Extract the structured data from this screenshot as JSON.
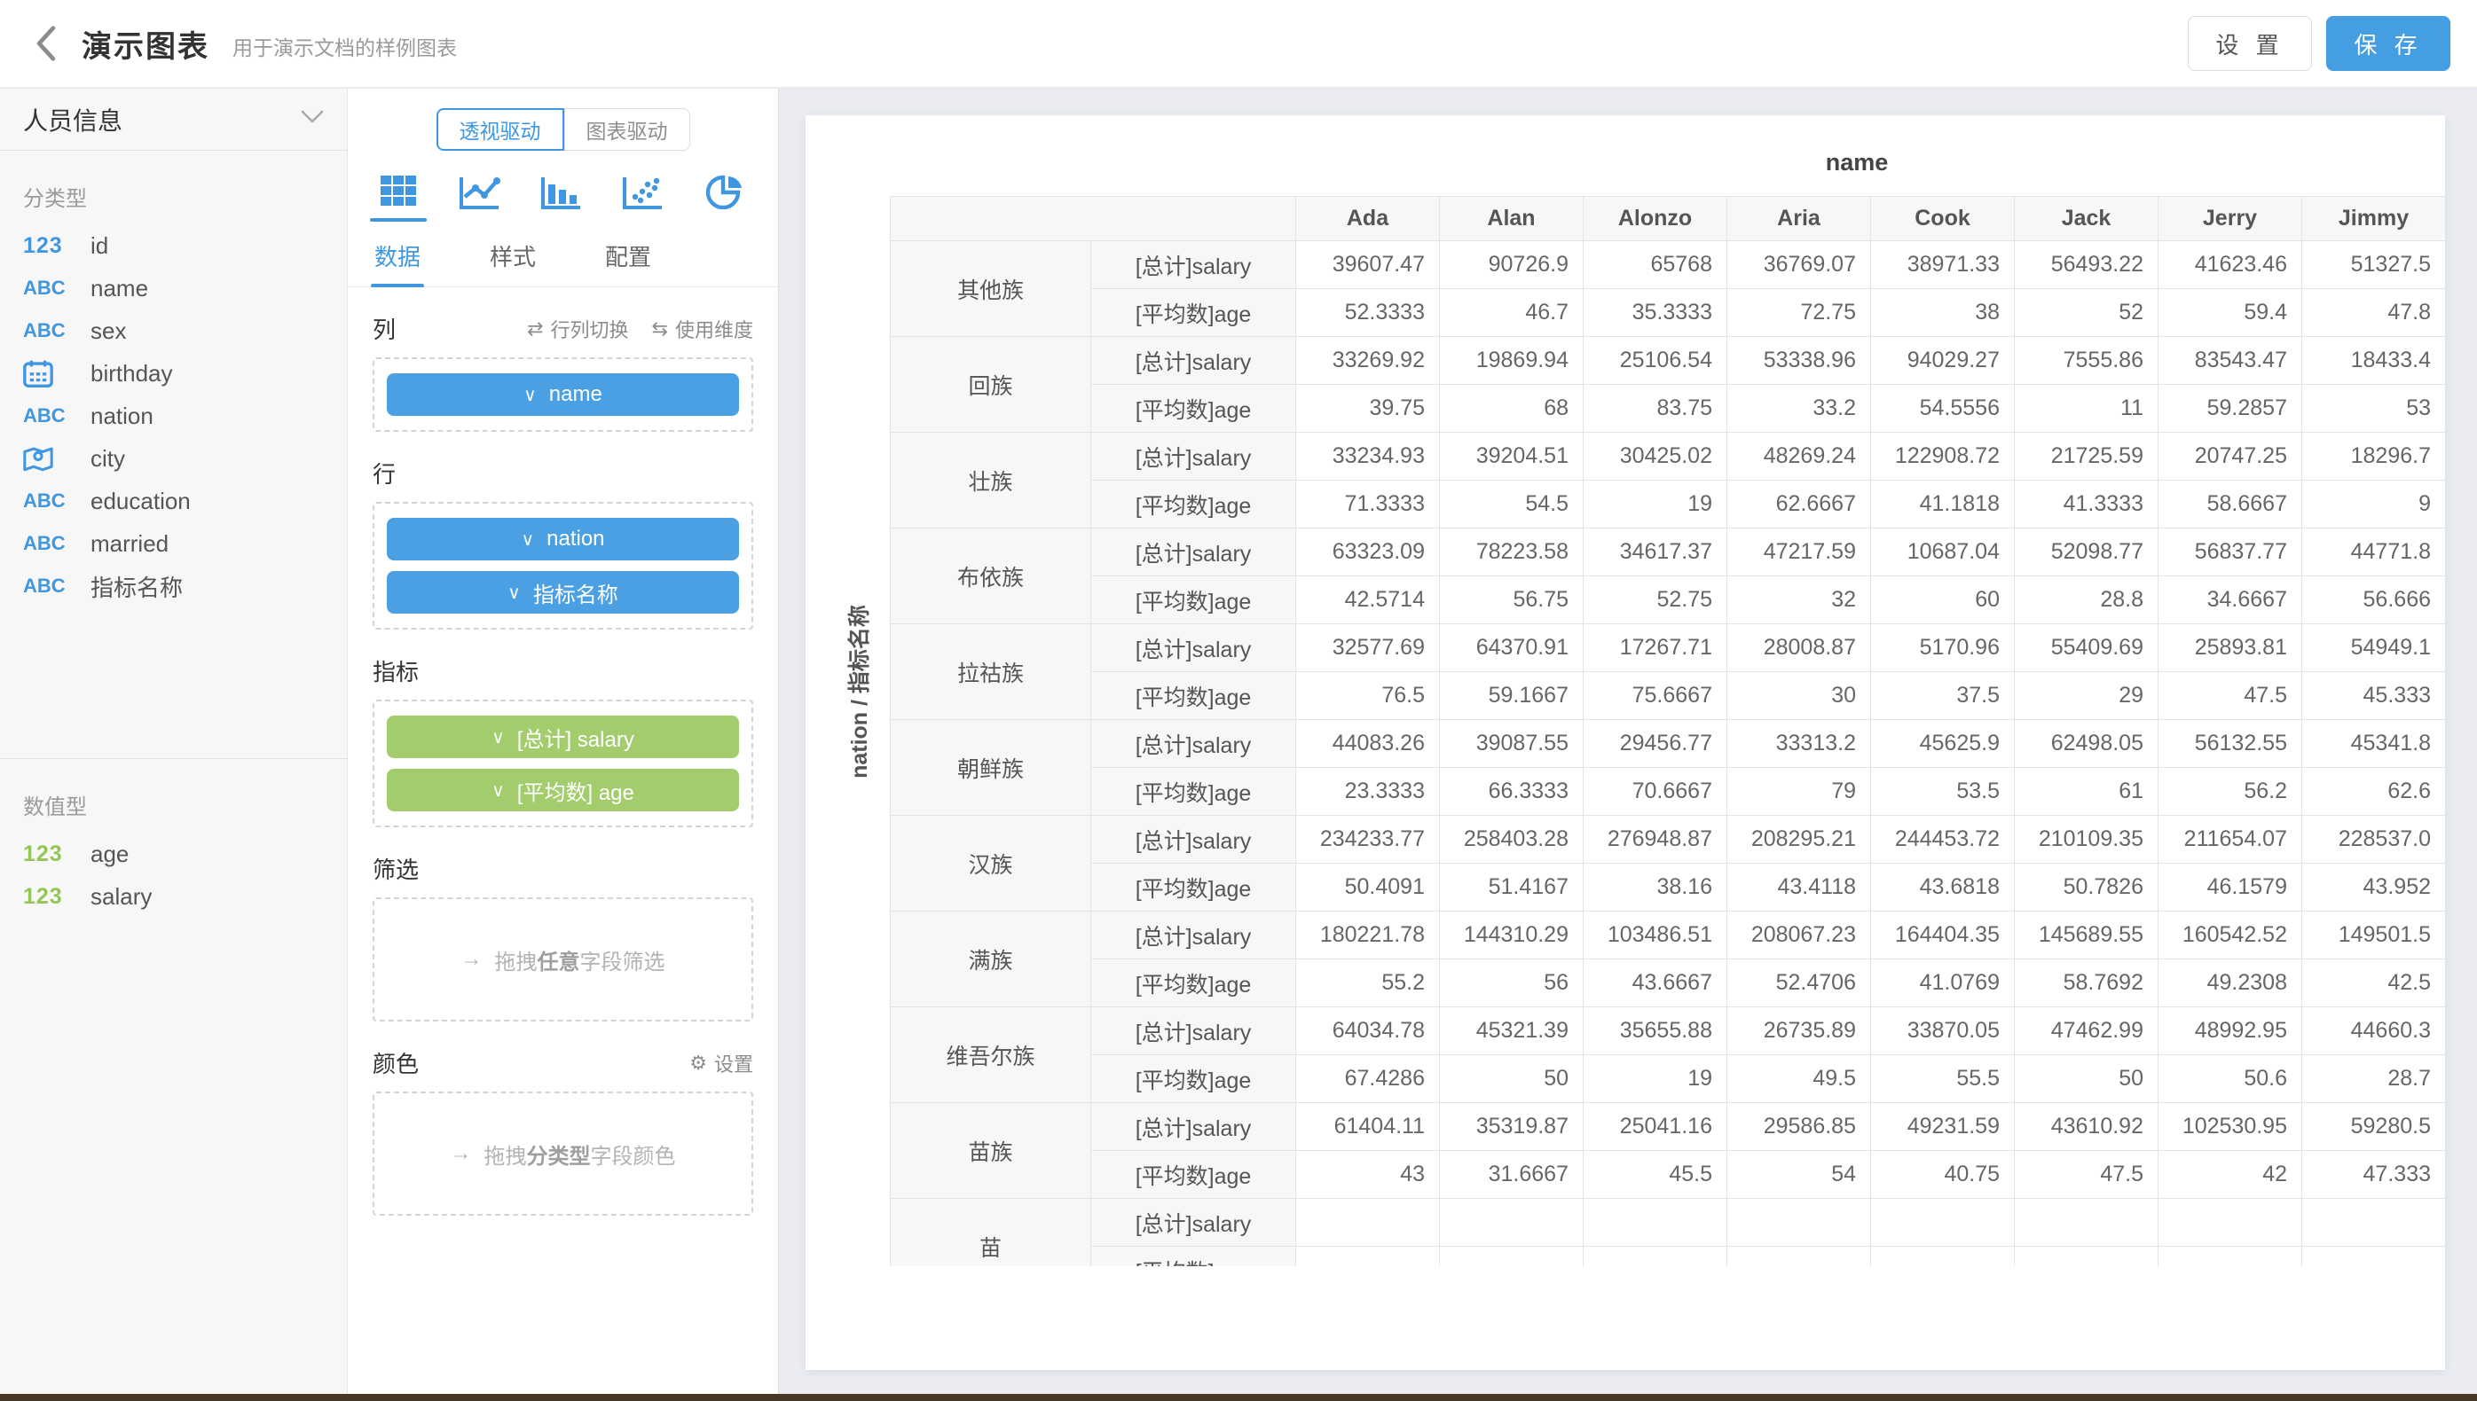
{
  "header": {
    "title": "演示图表",
    "subtitle": "用于演示文档的样例图表",
    "settings_label": "设 置",
    "save_label": "保 存"
  },
  "sidebar": {
    "dataset": {
      "label": "人员信息"
    },
    "sections": [
      {
        "label": "分类型",
        "fields": [
          {
            "icon": "num",
            "color": "blue",
            "name": "id"
          },
          {
            "icon": "abc",
            "color": "blue",
            "name": "name"
          },
          {
            "icon": "abc",
            "color": "blue",
            "name": "sex"
          },
          {
            "icon": "calendar",
            "color": "blue",
            "name": "birthday"
          },
          {
            "icon": "abc",
            "color": "blue",
            "name": "nation"
          },
          {
            "icon": "map",
            "color": "blue",
            "name": "city"
          },
          {
            "icon": "abc",
            "color": "blue",
            "name": "education"
          },
          {
            "icon": "abc",
            "color": "blue",
            "name": "married"
          },
          {
            "icon": "abc",
            "color": "blue",
            "name": "指标名称"
          }
        ]
      },
      {
        "label": "数值型",
        "fields": [
          {
            "icon": "num",
            "color": "green",
            "name": "age"
          },
          {
            "icon": "num",
            "color": "green",
            "name": "salary"
          }
        ]
      }
    ]
  },
  "config_panel": {
    "mode_toggle": {
      "options": [
        "透视驱动",
        "图表驱动"
      ],
      "active_index": 0
    },
    "chart_types": [
      "table",
      "line",
      "bar",
      "scatter",
      "pie"
    ],
    "active_chart_type": "table",
    "tabs": [
      "数据",
      "样式",
      "配置"
    ],
    "active_tab_index": 0,
    "columns_section": {
      "label": "列",
      "swap_label": "行列切换",
      "dimension_label": "使用维度",
      "pills": [
        {
          "text": "name",
          "color": "blue"
        }
      ]
    },
    "rows_section": {
      "label": "行",
      "pills": [
        {
          "text": "nation",
          "color": "blue"
        },
        {
          "text": "指标名称",
          "color": "blue"
        }
      ]
    },
    "measures_section": {
      "label": "指标",
      "pills": [
        {
          "text": "[总计] salary",
          "color": "green"
        },
        {
          "text": "[平均数] age",
          "color": "green"
        }
      ]
    },
    "filter_section": {
      "label": "筛选",
      "hint_prefix": "拖拽",
      "hint_em": "任意",
      "hint_suffix": "字段筛选"
    },
    "color_section": {
      "label": "颜色",
      "settings_label": "设置",
      "hint_prefix": "拖拽",
      "hint_em": "分类型",
      "hint_suffix": "字段颜色"
    }
  },
  "chart_data": {
    "type": "table",
    "title": "name",
    "row_axis_label": "nation / 指标名称",
    "columns": [
      "Ada",
      "Alan",
      "Alonzo",
      "Aria",
      "Cook",
      "Jack",
      "Jerry",
      "Jimmy"
    ],
    "metrics": [
      "[总计]salary",
      "[平均数]age"
    ],
    "groups": [
      {
        "nation": "其他族",
        "salary": [
          "39607.47",
          "90726.9",
          "65768",
          "36769.07",
          "38971.33",
          "56493.22",
          "41623.46",
          "51327.5"
        ],
        "age": [
          "52.3333",
          "46.7",
          "35.3333",
          "72.75",
          "38",
          "52",
          "59.4",
          "47.8"
        ]
      },
      {
        "nation": "回族",
        "salary": [
          "33269.92",
          "19869.94",
          "25106.54",
          "53338.96",
          "94029.27",
          "7555.86",
          "83543.47",
          "18433.4"
        ],
        "age": [
          "39.75",
          "68",
          "83.75",
          "33.2",
          "54.5556",
          "11",
          "59.2857",
          "53"
        ]
      },
      {
        "nation": "壮族",
        "salary": [
          "33234.93",
          "39204.51",
          "30425.02",
          "48269.24",
          "122908.72",
          "21725.59",
          "20747.25",
          "18296.7"
        ],
        "age": [
          "71.3333",
          "54.5",
          "19",
          "62.6667",
          "41.1818",
          "41.3333",
          "58.6667",
          "9"
        ]
      },
      {
        "nation": "布依族",
        "salary": [
          "63323.09",
          "78223.58",
          "34617.37",
          "47217.59",
          "10687.04",
          "52098.77",
          "56837.77",
          "44771.8"
        ],
        "age": [
          "42.5714",
          "56.75",
          "52.75",
          "32",
          "60",
          "28.8",
          "34.6667",
          "56.666"
        ]
      },
      {
        "nation": "拉祜族",
        "salary": [
          "32577.69",
          "64370.91",
          "17267.71",
          "28008.87",
          "5170.96",
          "55409.69",
          "25893.81",
          "54949.1"
        ],
        "age": [
          "76.5",
          "59.1667",
          "75.6667",
          "30",
          "37.5",
          "29",
          "47.5",
          "45.333"
        ]
      },
      {
        "nation": "朝鲜族",
        "salary": [
          "44083.26",
          "39087.55",
          "29456.77",
          "33313.2",
          "45625.9",
          "62498.05",
          "56132.55",
          "45341.8"
        ],
        "age": [
          "23.3333",
          "66.3333",
          "70.6667",
          "79",
          "53.5",
          "61",
          "56.2",
          "62.6"
        ]
      },
      {
        "nation": "汉族",
        "salary": [
          "234233.77",
          "258403.28",
          "276948.87",
          "208295.21",
          "244453.72",
          "210109.35",
          "211654.07",
          "228537.0"
        ],
        "age": [
          "50.4091",
          "51.4167",
          "38.16",
          "43.4118",
          "43.6818",
          "50.7826",
          "46.1579",
          "43.952"
        ]
      },
      {
        "nation": "满族",
        "salary": [
          "180221.78",
          "144310.29",
          "103486.51",
          "208067.23",
          "164404.35",
          "145689.55",
          "160542.52",
          "149501.5"
        ],
        "age": [
          "55.2",
          "56",
          "43.6667",
          "52.4706",
          "41.0769",
          "58.7692",
          "49.2308",
          "42.5"
        ]
      },
      {
        "nation": "维吾尔族",
        "salary": [
          "64034.78",
          "45321.39",
          "35655.88",
          "26735.89",
          "33870.05",
          "47462.99",
          "48992.95",
          "44660.3"
        ],
        "age": [
          "67.4286",
          "50",
          "19",
          "49.5",
          "55.5",
          "50",
          "50.6",
          "28.7"
        ]
      },
      {
        "nation": "苗族",
        "salary": [
          "61404.11",
          "35319.87",
          "25041.16",
          "29586.85",
          "49231.59",
          "43610.92",
          "102530.95",
          "59280.5"
        ],
        "age": [
          "43",
          "31.6667",
          "45.5",
          "54",
          "40.75",
          "47.5",
          "42",
          "47.333"
        ]
      },
      {
        "nation": "苗",
        "salary": [
          "",
          "",
          "",
          "",
          "",
          "",
          "",
          ""
        ],
        "age": [
          "",
          "",
          "",
          "",
          "",
          "",
          "",
          ""
        ]
      }
    ]
  }
}
